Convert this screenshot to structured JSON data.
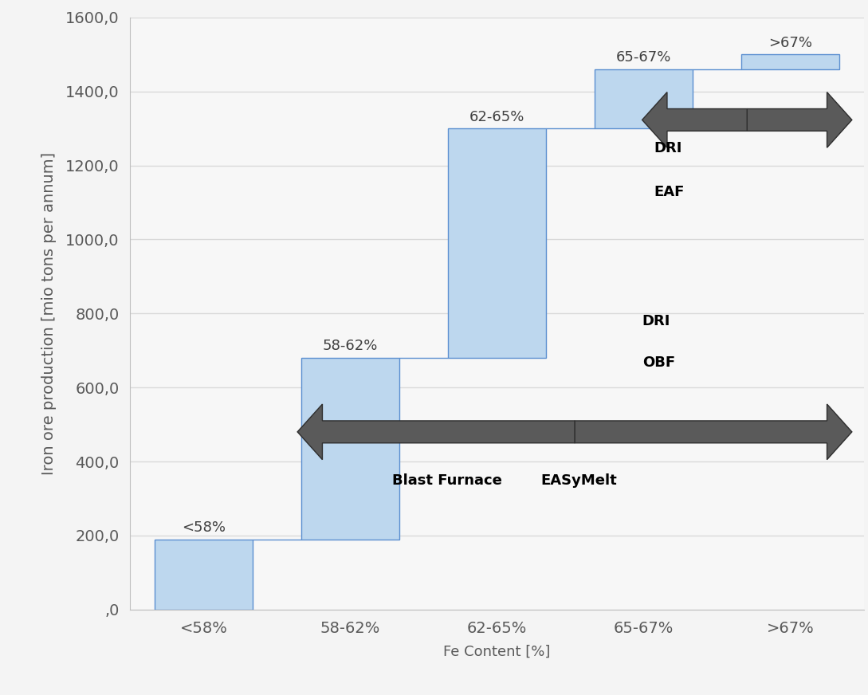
{
  "chart_data": {
    "type": "waterfall",
    "categories": [
      "<58%",
      "58-62%",
      "62-65%",
      "65-67%",
      ">67%"
    ],
    "values": [
      190,
      490,
      620,
      160,
      40
    ],
    "color": "#bdd7ee",
    "xlabel": "Fe Content [%]",
    "ylabel": "Iron ore production [mio tons per annum]",
    "ylim": [
      0,
      1600
    ],
    "yticks": [
      {
        "value": 0,
        "label": ",0"
      },
      {
        "value": 200,
        "label": "200,0"
      },
      {
        "value": 400,
        "label": "400,0"
      },
      {
        "value": 600,
        "label": "600,0"
      },
      {
        "value": 800,
        "label": "800,0"
      },
      {
        "value": 1000,
        "label": "1000,0"
      },
      {
        "value": 1200,
        "label": "1200,0"
      },
      {
        "value": 1400,
        "label": "1400,0"
      },
      {
        "value": 1600,
        "label": "1600,0"
      }
    ],
    "grid": true,
    "annotations": [
      "DRI",
      "EAF",
      "DRI",
      "OBF",
      "Blast Furnace",
      "EASyMelt"
    ]
  }
}
